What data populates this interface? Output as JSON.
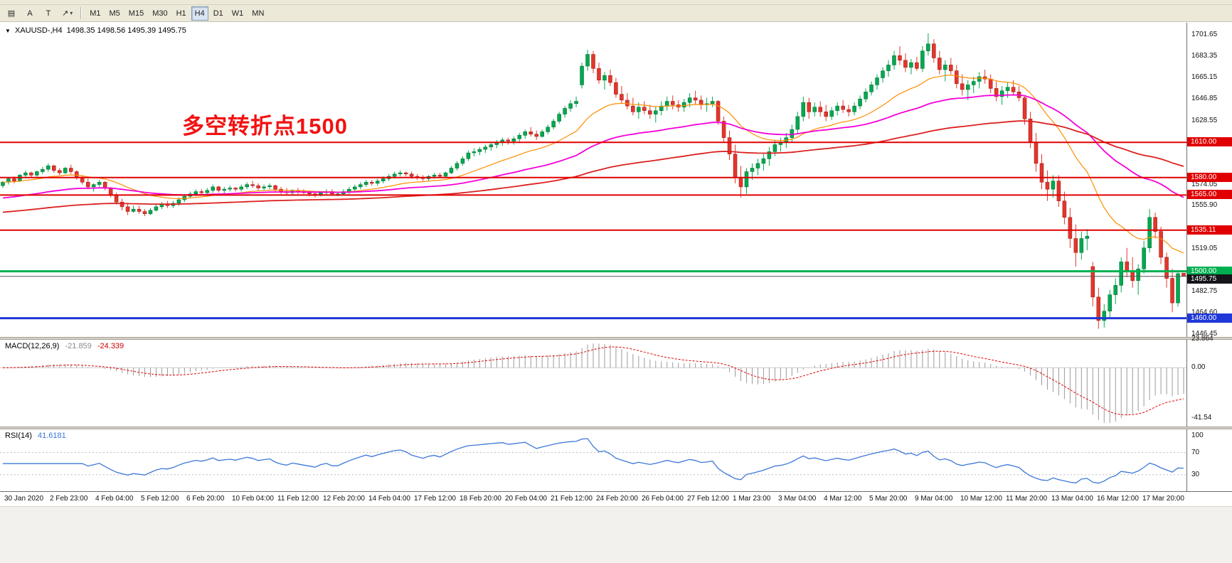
{
  "toolbar": {
    "tools": [
      {
        "name": "chart-tools",
        "glyph": "▤"
      },
      {
        "name": "arrow-label",
        "glyph": "A"
      },
      {
        "name": "text-tool",
        "glyph": "T"
      },
      {
        "name": "arrow-objects",
        "glyph": "↗",
        "dropdown": "▾"
      }
    ],
    "timeframes": [
      {
        "label": "M1"
      },
      {
        "label": "M5"
      },
      {
        "label": "M15"
      },
      {
        "label": "M30"
      },
      {
        "label": "H1"
      },
      {
        "label": "H4",
        "active": true
      },
      {
        "label": "D1"
      },
      {
        "label": "W1"
      },
      {
        "label": "MN"
      }
    ]
  },
  "chart_header": {
    "expand_arrow": "▼",
    "symbol_period": "XAUUSD-,H4",
    "ohlc": "1498.35 1498.56 1495.39 1495.75"
  },
  "annotation": {
    "text": "多空转折点1500",
    "color": "#f21212"
  },
  "chart_data": {
    "type": "candlestick",
    "symbol": "XAUUSD-",
    "timeframe": "H4",
    "price_range": [
      1444,
      1712
    ],
    "up_color": "#00a94f",
    "up_stroke": "#00662f",
    "down_color": "#e5352b",
    "down_stroke": "#8f1510",
    "candles": [
      [
        1573,
        1577,
        1571,
        1576
      ],
      [
        1576,
        1580,
        1574,
        1579
      ],
      [
        1579,
        1581,
        1575,
        1577
      ],
      [
        1577,
        1583,
        1576,
        1582
      ],
      [
        1582,
        1586,
        1580,
        1584
      ],
      [
        1584,
        1585,
        1580,
        1582
      ],
      [
        1582,
        1586,
        1580,
        1585
      ],
      [
        1585,
        1589,
        1583,
        1587
      ],
      [
        1587,
        1592,
        1585,
        1590
      ],
      [
        1590,
        1591,
        1584,
        1586
      ],
      [
        1586,
        1588,
        1582,
        1584
      ],
      [
        1584,
        1589,
        1583,
        1588
      ],
      [
        1588,
        1591,
        1583,
        1585
      ],
      [
        1585,
        1586,
        1578,
        1580
      ],
      [
        1580,
        1582,
        1574,
        1576
      ],
      [
        1576,
        1579,
        1570,
        1572
      ],
      [
        1572,
        1575,
        1568,
        1574
      ],
      [
        1574,
        1578,
        1572,
        1576
      ],
      [
        1576,
        1577,
        1569,
        1571
      ],
      [
        1571,
        1572,
        1563,
        1565
      ],
      [
        1565,
        1567,
        1557,
        1559
      ],
      [
        1559,
        1562,
        1552,
        1555
      ],
      [
        1555,
        1558,
        1548,
        1551
      ],
      [
        1551,
        1556,
        1550,
        1553
      ],
      [
        1553,
        1556,
        1549,
        1551
      ],
      [
        1551,
        1553,
        1547,
        1549
      ],
      [
        1549,
        1554,
        1548,
        1552
      ],
      [
        1552,
        1557,
        1551,
        1555
      ],
      [
        1555,
        1559,
        1553,
        1557
      ],
      [
        1557,
        1560,
        1554,
        1556
      ],
      [
        1556,
        1560,
        1554,
        1558
      ],
      [
        1558,
        1563,
        1556,
        1561
      ],
      [
        1561,
        1566,
        1559,
        1564
      ],
      [
        1564,
        1568,
        1562,
        1566
      ],
      [
        1566,
        1570,
        1564,
        1568
      ],
      [
        1568,
        1570,
        1565,
        1567
      ],
      [
        1567,
        1571,
        1565,
        1569
      ],
      [
        1569,
        1574,
        1567,
        1572
      ],
      [
        1572,
        1573,
        1567,
        1569
      ],
      [
        1569,
        1572,
        1566,
        1570
      ],
      [
        1570,
        1573,
        1568,
        1571
      ],
      [
        1571,
        1572,
        1568,
        1570
      ],
      [
        1570,
        1574,
        1568,
        1572
      ],
      [
        1572,
        1576,
        1570,
        1574
      ],
      [
        1574,
        1577,
        1571,
        1573
      ],
      [
        1573,
        1575,
        1569,
        1571
      ],
      [
        1571,
        1574,
        1569,
        1572
      ],
      [
        1572,
        1575,
        1570,
        1573
      ],
      [
        1573,
        1574,
        1568,
        1570
      ],
      [
        1570,
        1572,
        1566,
        1568
      ],
      [
        1568,
        1571,
        1565,
        1567
      ],
      [
        1567,
        1570,
        1565,
        1569
      ],
      [
        1569,
        1571,
        1566,
        1568
      ],
      [
        1568,
        1570,
        1566,
        1567
      ],
      [
        1567,
        1569,
        1564,
        1566
      ],
      [
        1566,
        1568,
        1563,
        1565
      ],
      [
        1565,
        1568,
        1564,
        1567
      ],
      [
        1567,
        1570,
        1565,
        1568
      ],
      [
        1568,
        1570,
        1565,
        1566
      ],
      [
        1566,
        1568,
        1564,
        1566
      ],
      [
        1566,
        1570,
        1565,
        1568
      ],
      [
        1568,
        1572,
        1566,
        1570
      ],
      [
        1570,
        1574,
        1568,
        1572
      ],
      [
        1572,
        1576,
        1570,
        1574
      ],
      [
        1574,
        1578,
        1572,
        1576
      ],
      [
        1576,
        1578,
        1573,
        1575
      ],
      [
        1575,
        1579,
        1573,
        1577
      ],
      [
        1577,
        1581,
        1575,
        1579
      ],
      [
        1579,
        1583,
        1577,
        1581
      ],
      [
        1581,
        1585,
        1579,
        1583
      ],
      [
        1583,
        1586,
        1581,
        1584
      ],
      [
        1584,
        1585,
        1581,
        1583
      ],
      [
        1583,
        1585,
        1579,
        1581
      ],
      [
        1581,
        1583,
        1578,
        1580
      ],
      [
        1580,
        1582,
        1577,
        1579
      ],
      [
        1579,
        1582,
        1577,
        1581
      ],
      [
        1581,
        1584,
        1579,
        1582
      ],
      [
        1582,
        1584,
        1580,
        1581
      ],
      [
        1581,
        1585,
        1580,
        1584
      ],
      [
        1584,
        1590,
        1583,
        1588
      ],
      [
        1588,
        1594,
        1586,
        1592
      ],
      [
        1592,
        1598,
        1590,
        1596
      ],
      [
        1596,
        1603,
        1594,
        1601
      ],
      [
        1601,
        1605,
        1598,
        1602
      ],
      [
        1602,
        1606,
        1599,
        1604
      ],
      [
        1604,
        1608,
        1601,
        1606
      ],
      [
        1606,
        1610,
        1603,
        1608
      ],
      [
        1608,
        1612,
        1605,
        1610
      ],
      [
        1610,
        1614,
        1607,
        1612
      ],
      [
        1612,
        1614,
        1608,
        1611
      ],
      [
        1611,
        1615,
        1608,
        1613
      ],
      [
        1613,
        1618,
        1610,
        1616
      ],
      [
        1616,
        1621,
        1613,
        1619
      ],
      [
        1619,
        1623,
        1615,
        1617
      ],
      [
        1617,
        1620,
        1612,
        1615
      ],
      [
        1615,
        1621,
        1614,
        1619
      ],
      [
        1619,
        1625,
        1617,
        1623
      ],
      [
        1623,
        1630,
        1621,
        1628
      ],
      [
        1628,
        1636,
        1626,
        1634
      ],
      [
        1634,
        1641,
        1631,
        1639
      ],
      [
        1639,
        1646,
        1636,
        1643
      ],
      [
        1643,
        1649,
        1640,
        1645
      ],
      [
        1659,
        1678,
        1656,
        1675
      ],
      [
        1675,
        1689,
        1671,
        1685
      ],
      [
        1685,
        1688,
        1669,
        1673
      ],
      [
        1673,
        1678,
        1660,
        1663
      ],
      [
        1663,
        1670,
        1655,
        1667
      ],
      [
        1667,
        1672,
        1658,
        1661
      ],
      [
        1661,
        1665,
        1648,
        1651
      ],
      [
        1651,
        1658,
        1643,
        1646
      ],
      [
        1646,
        1652,
        1638,
        1641
      ],
      [
        1641,
        1648,
        1633,
        1636
      ],
      [
        1636,
        1644,
        1630,
        1640
      ],
      [
        1640,
        1645,
        1634,
        1637
      ],
      [
        1637,
        1642,
        1630,
        1634
      ],
      [
        1634,
        1640,
        1627,
        1637
      ],
      [
        1637,
        1645,
        1633,
        1641
      ],
      [
        1641,
        1649,
        1637,
        1645
      ],
      [
        1645,
        1650,
        1638,
        1642
      ],
      [
        1642,
        1646,
        1636,
        1640
      ],
      [
        1640,
        1647,
        1636,
        1644
      ],
      [
        1644,
        1652,
        1640,
        1648
      ],
      [
        1648,
        1654,
        1642,
        1646
      ],
      [
        1646,
        1650,
        1638,
        1642
      ],
      [
        1642,
        1648,
        1636,
        1643
      ],
      [
        1643,
        1649,
        1640,
        1645
      ],
      [
        1645,
        1646,
        1625,
        1628
      ],
      [
        1628,
        1632,
        1610,
        1614
      ],
      [
        1614,
        1620,
        1595,
        1600
      ],
      [
        1600,
        1608,
        1575,
        1580
      ],
      [
        1580,
        1590,
        1563,
        1572
      ],
      [
        1572,
        1588,
        1566,
        1585
      ],
      [
        1585,
        1592,
        1578,
        1588
      ],
      [
        1588,
        1596,
        1582,
        1592
      ],
      [
        1592,
        1600,
        1586,
        1596
      ],
      [
        1596,
        1606,
        1590,
        1602
      ],
      [
        1602,
        1612,
        1598,
        1608
      ],
      [
        1608,
        1614,
        1602,
        1610
      ],
      [
        1610,
        1618,
        1605,
        1614
      ],
      [
        1614,
        1625,
        1610,
        1621
      ],
      [
        1621,
        1636,
        1617,
        1632
      ],
      [
        1632,
        1649,
        1628,
        1644
      ],
      [
        1644,
        1648,
        1630,
        1636
      ],
      [
        1636,
        1644,
        1632,
        1640
      ],
      [
        1640,
        1645,
        1632,
        1636
      ],
      [
        1636,
        1642,
        1628,
        1632
      ],
      [
        1632,
        1640,
        1629,
        1637
      ],
      [
        1637,
        1644,
        1633,
        1641
      ],
      [
        1641,
        1646,
        1635,
        1638
      ],
      [
        1638,
        1642,
        1632,
        1636
      ],
      [
        1636,
        1644,
        1633,
        1641
      ],
      [
        1641,
        1650,
        1638,
        1647
      ],
      [
        1647,
        1656,
        1644,
        1653
      ],
      [
        1653,
        1662,
        1650,
        1659
      ],
      [
        1659,
        1668,
        1655,
        1665
      ],
      [
        1665,
        1674,
        1661,
        1671
      ],
      [
        1671,
        1680,
        1666,
        1676
      ],
      [
        1676,
        1688,
        1672,
        1684
      ],
      [
        1684,
        1692,
        1676,
        1680
      ],
      [
        1680,
        1686,
        1670,
        1674
      ],
      [
        1674,
        1681,
        1668,
        1678
      ],
      [
        1678,
        1683,
        1671,
        1673
      ],
      [
        1673,
        1692,
        1670,
        1688
      ],
      [
        1688,
        1703,
        1684,
        1694
      ],
      [
        1694,
        1698,
        1678,
        1682
      ],
      [
        1682,
        1688,
        1668,
        1672
      ],
      [
        1672,
        1680,
        1662,
        1676
      ],
      [
        1676,
        1682,
        1668,
        1671
      ],
      [
        1671,
        1676,
        1656,
        1660
      ],
      [
        1660,
        1668,
        1650,
        1655
      ],
      [
        1655,
        1663,
        1646,
        1659
      ],
      [
        1659,
        1666,
        1652,
        1662
      ],
      [
        1662,
        1670,
        1656,
        1666
      ],
      [
        1666,
        1672,
        1660,
        1664
      ],
      [
        1664,
        1668,
        1652,
        1656
      ],
      [
        1656,
        1662,
        1645,
        1649
      ],
      [
        1649,
        1658,
        1642,
        1654
      ],
      [
        1654,
        1661,
        1648,
        1657
      ],
      [
        1657,
        1663,
        1650,
        1653
      ],
      [
        1653,
        1658,
        1645,
        1648
      ],
      [
        1648,
        1650,
        1625,
        1630
      ],
      [
        1630,
        1636,
        1605,
        1610
      ],
      [
        1610,
        1618,
        1585,
        1592
      ],
      [
        1592,
        1600,
        1570,
        1576
      ],
      [
        1576,
        1586,
        1560,
        1570
      ],
      [
        1570,
        1582,
        1563,
        1577
      ],
      [
        1577,
        1582,
        1555,
        1560
      ],
      [
        1560,
        1568,
        1540,
        1546
      ],
      [
        1546,
        1554,
        1520,
        1528
      ],
      [
        1528,
        1540,
        1504,
        1516
      ],
      [
        1516,
        1534,
        1510,
        1528
      ],
      [
        1528,
        1536,
        1518,
        1530
      ],
      [
        1504,
        1508,
        1470,
        1478
      ],
      [
        1478,
        1486,
        1451,
        1458
      ],
      [
        1458,
        1472,
        1452,
        1466
      ],
      [
        1466,
        1484,
        1460,
        1480
      ],
      [
        1480,
        1494,
        1472,
        1488
      ],
      [
        1488,
        1512,
        1482,
        1508
      ],
      [
        1508,
        1520,
        1495,
        1500
      ],
      [
        1500,
        1512,
        1486,
        1492
      ],
      [
        1492,
        1506,
        1480,
        1502
      ],
      [
        1502,
        1526,
        1498,
        1520
      ],
      [
        1520,
        1553,
        1516,
        1546
      ],
      [
        1546,
        1550,
        1528,
        1534
      ],
      [
        1534,
        1538,
        1506,
        1512
      ],
      [
        1512,
        1516,
        1486,
        1494
      ],
      [
        1494,
        1502,
        1465,
        1473
      ],
      [
        1473,
        1499,
        1470,
        1498
      ],
      [
        1498.4,
        1498.6,
        1495.4,
        1495.8
      ]
    ],
    "moving_averages": [
      {
        "name": "ma-fast",
        "period": 20,
        "seed": null,
        "color": "#ff8d00",
        "width": 1.2
      },
      {
        "name": "ma-mid",
        "period": 55,
        "seed": 1562,
        "color": "#f500d9",
        "width": 1.8
      },
      {
        "name": "ma-slow",
        "period": 130,
        "seed": 1550,
        "color": "#dd2020",
        "width": 1.8
      }
    ],
    "hlines": [
      {
        "price": 1610.0,
        "label": "1610.00",
        "color": "#e00000",
        "thickness": 2
      },
      {
        "price": 1580.0,
        "label": "1580.00",
        "color": "#e00000",
        "thickness": 2
      },
      {
        "price": 1565.0,
        "label": "1565.00",
        "color": "#e00000",
        "thickness": 2
      },
      {
        "price": 1535.11,
        "label": "1535.11",
        "color": "#e00000",
        "thickness": 2
      },
      {
        "price": 1500.0,
        "label": "1500.00",
        "color": "#00b050",
        "thickness": 3
      },
      {
        "price": 1460.0,
        "label": "1460.00",
        "color": "#2038d8",
        "thickness": 3
      }
    ],
    "current_price": {
      "value": 1495.75,
      "label": "1495.75",
      "badge_bg": "#16161a"
    },
    "price_ticks": [
      {
        "v": 1701.65,
        "t": "1701.65"
      },
      {
        "v": 1683.35,
        "t": "1683.35"
      },
      {
        "v": 1665.15,
        "t": "1665.15"
      },
      {
        "v": 1646.85,
        "t": "1646.85"
      },
      {
        "v": 1628.55,
        "t": "1628.55"
      },
      {
        "v": 1574.05,
        "t": "1574.05"
      },
      {
        "v": 1555.9,
        "t": "1555.90"
      },
      {
        "v": 1519.05,
        "t": "1519.05"
      },
      {
        "v": 1482.75,
        "t": "1482.75"
      },
      {
        "v": 1464.6,
        "t": "1464.60"
      },
      {
        "v": 1446.45,
        "t": "1446.45"
      }
    ],
    "time_labels": [
      "30 Jan 2020",
      "2 Feb 23:00",
      "4 Feb 04:00",
      "5 Feb 12:00",
      "6 Feb 20:00",
      "10 Feb 04:00",
      "11 Feb 12:00",
      "12 Feb 20:00",
      "14 Feb 04:00",
      "17 Feb 12:00",
      "18 Feb 20:00",
      "20 Feb 04:00",
      "21 Feb 12:00",
      "24 Feb 20:00",
      "26 Feb 04:00",
      "27 Feb 12:00",
      "1 Mar 23:00",
      "3 Mar 04:00",
      "4 Mar 12:00",
      "5 Mar 20:00",
      "9 Mar 04:00",
      "10 Mar 12:00",
      "11 Mar 20:00",
      "13 Mar 04:00",
      "16 Mar 12:00",
      "17 Mar 20:00"
    ],
    "indicators": {
      "macd": {
        "name": "MACD(12,26,9)",
        "value1": "-21.859",
        "value2": "-24.339",
        "fast": 12,
        "slow": 26,
        "signal": 9,
        "ticks": [
          {
            "v": 23.864,
            "t": "23.864"
          },
          {
            "v": 0,
            "t": "0.00"
          },
          {
            "v": -41.54,
            "t": "-41.54"
          }
        ],
        "hist_color": "#9a9a9a",
        "signal_color": "#e00000"
      },
      "rsi": {
        "name": "RSI(14)",
        "value": "41.6181",
        "period": 14,
        "range": [
          0,
          112
        ],
        "ticks": [
          {
            "v": 100,
            "t": "100"
          },
          {
            "v": 70,
            "t": "70"
          },
          {
            "v": 30,
            "t": "30"
          }
        ],
        "levels": [
          70,
          30
        ],
        "color": "#3c78d8",
        "value_color": "#3c78d8"
      }
    }
  }
}
